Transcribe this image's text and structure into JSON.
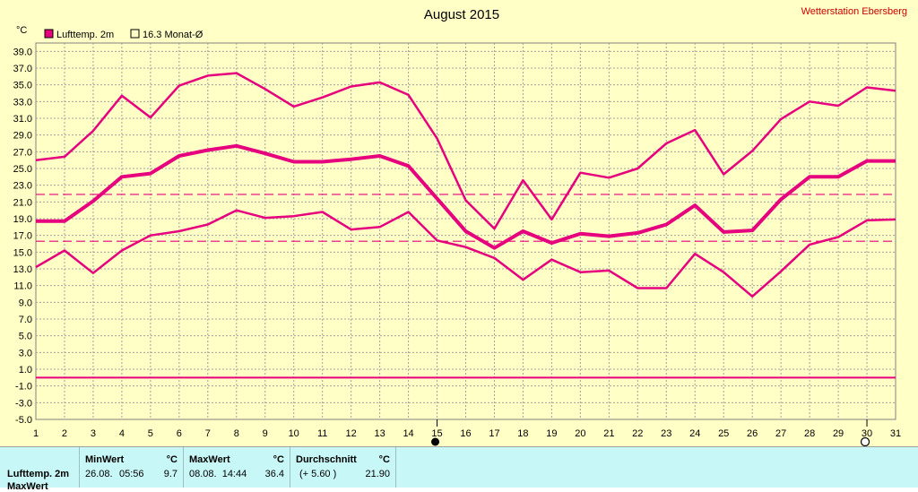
{
  "header": {
    "title": "August 2015",
    "station": "Wetterstation Ebersberg",
    "unit": "°C"
  },
  "legend": [
    {
      "label": "Lufttemp. 2m",
      "filled": true,
      "color": "#e6007e"
    },
    {
      "label": "16.3 Monat-Ø",
      "filled": false,
      "color": "#e6007e"
    }
  ],
  "chart_data": {
    "type": "line",
    "title": "August 2015",
    "ylabel": "°C",
    "x": [
      1,
      2,
      3,
      4,
      5,
      6,
      7,
      8,
      9,
      10,
      11,
      12,
      13,
      14,
      15,
      16,
      17,
      18,
      19,
      20,
      21,
      22,
      23,
      24,
      25,
      26,
      27,
      28,
      29,
      30,
      31
    ],
    "ylim": [
      -5.0,
      40.0
    ],
    "yticks": [
      "39.0",
      "37.0",
      "35.0",
      "33.0",
      "31.0",
      "29.0",
      "27.0",
      "25.0",
      "23.0",
      "21.0",
      "19.0",
      "17.0",
      "15.0",
      "13.0",
      "11.0",
      "9.0",
      "7.0",
      "5.0",
      "3.0",
      "1.0",
      "-1.0",
      "-3.0",
      "-5.0"
    ],
    "xticks": [
      "1",
      "2",
      "3",
      "4",
      "5",
      "6",
      "7",
      "8",
      "9",
      "10",
      "11",
      "12",
      "13",
      "14",
      "15",
      "16",
      "17",
      "18",
      "19",
      "20",
      "21",
      "22",
      "23",
      "24",
      "25",
      "26",
      "27",
      "28",
      "29",
      "30",
      "31"
    ],
    "grid": true,
    "series": [
      {
        "name": "Max",
        "width": 2.5,
        "values": [
          26.0,
          26.4,
          29.5,
          33.7,
          31.1,
          34.9,
          36.1,
          36.4,
          34.5,
          32.4,
          33.5,
          34.8,
          35.3,
          33.8,
          28.6,
          21.2,
          17.8,
          23.6,
          18.9,
          24.5,
          23.9,
          25.0,
          28.0,
          29.6,
          24.3,
          27.1,
          30.9,
          33.0,
          32.5,
          34.7,
          34.3
        ]
      },
      {
        "name": "Mittel",
        "width": 4,
        "values": [
          18.7,
          18.7,
          21.1,
          24.0,
          24.4,
          26.5,
          27.2,
          27.7,
          26.8,
          25.8,
          25.8,
          26.1,
          26.5,
          25.3,
          21.4,
          17.5,
          15.5,
          17.5,
          16.1,
          17.2,
          16.9,
          17.3,
          18.3,
          20.6,
          17.4,
          17.6,
          21.3,
          24.0,
          24.0,
          25.9,
          25.9
        ]
      },
      {
        "name": "Min",
        "width": 2.5,
        "values": [
          13.2,
          15.2,
          12.5,
          15.2,
          17.0,
          17.5,
          18.3,
          20.0,
          19.1,
          19.3,
          19.8,
          17.7,
          18.0,
          19.8,
          16.4,
          15.6,
          14.3,
          11.7,
          14.1,
          12.6,
          12.8,
          10.7,
          10.7,
          14.8,
          12.6,
          9.7,
          12.7,
          15.9,
          16.8,
          18.8,
          18.9
        ]
      }
    ],
    "reference_lines": [
      {
        "value": 21.9,
        "style": "dashed"
      },
      {
        "value": 16.3,
        "style": "dashed"
      },
      {
        "value": 0.0,
        "style": "solid"
      }
    ],
    "markers": [
      {
        "day": 15,
        "icon": "new-moon-icon"
      },
      {
        "day": 30,
        "icon": "full-moon-icon"
      }
    ]
  },
  "stats": {
    "row_label": "Lufttemp. 2m",
    "row_label_2": "MaxWert",
    "min_header": "MinWert",
    "min_unit": "°C",
    "min_date": "26.08.",
    "min_time": "05:56",
    "min_value": "9.7",
    "max_header": "MaxWert",
    "max_unit": "°C",
    "max_datetime": "08.08.  14:44",
    "max_value": "36.4",
    "avg_header": "Durchschnitt",
    "avg_unit": "°C",
    "avg_dev": "(+ 5.60 )",
    "avg_value": "21.90"
  },
  "colors": {
    "background": "#ffffc6",
    "line": "#e6007e",
    "grid": "#a0a0a0",
    "stats_bg": "#c8f7f7",
    "station": "#cc0000"
  }
}
